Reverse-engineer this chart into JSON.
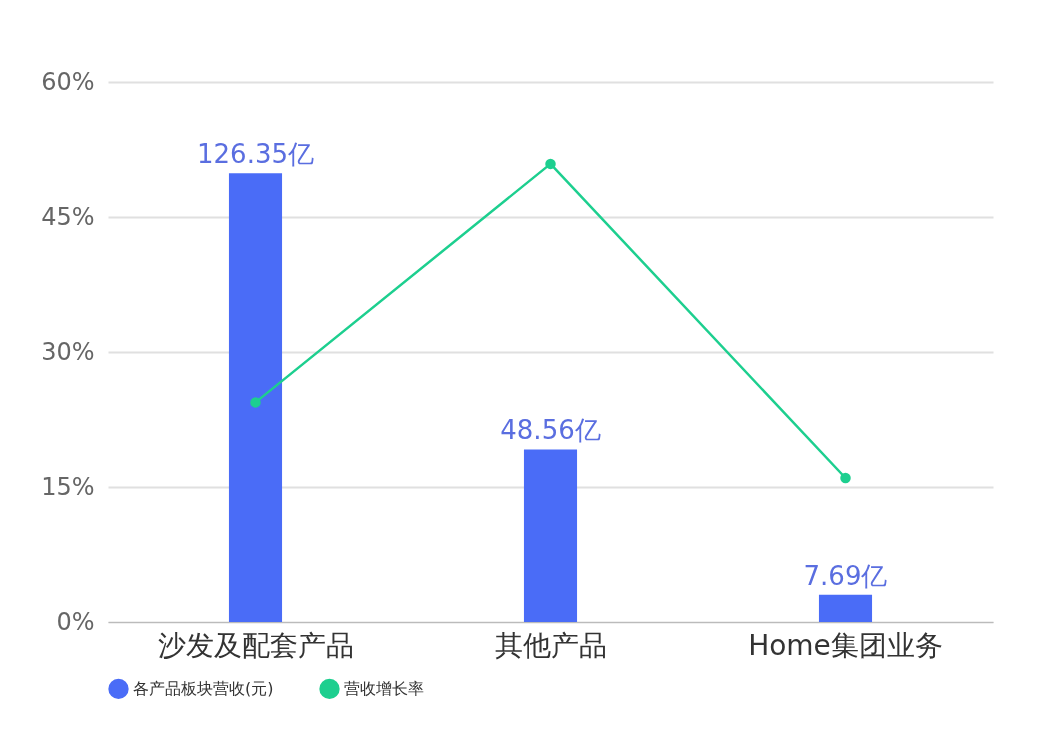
{
  "chart_data": {
    "type": "bar",
    "categories": [
      "沙发及配套产品",
      "其他产品",
      "Home集团业务"
    ],
    "series": [
      {
        "name": "各产品板块营收(元)",
        "axis": "y2",
        "color": "#4a6cf7",
        "values": [
          126.35,
          48.56,
          7.69
        ],
        "value_labels": [
          "126.35亿",
          "48.56亿",
          "7.69亿"
        ]
      },
      {
        "name": "营收增长率",
        "type": "line",
        "color": "#1dcf8f",
        "values": [
          24.4,
          50.9,
          16.0
        ]
      }
    ],
    "ylim": [
      0,
      60
    ],
    "yticks": [
      {
        "value": 0,
        "label": "0%"
      },
      {
        "value": 15,
        "label": "15%"
      },
      {
        "value": 30,
        "label": "30%"
      },
      {
        "value": 45,
        "label": "45%"
      },
      {
        "value": 60,
        "label": "60%"
      }
    ],
    "y2lim": [
      0,
      152
    ],
    "grid": "y",
    "legend": "bottom",
    "marker": "circle",
    "tick_labels": "xy"
  }
}
